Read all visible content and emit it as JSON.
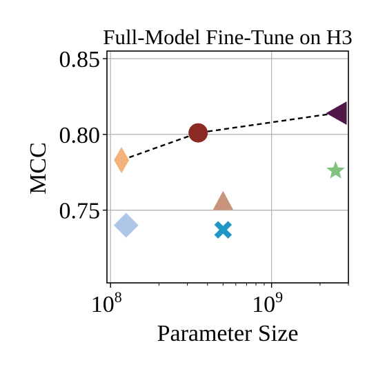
{
  "chart_data": {
    "type": "scatter",
    "title": "Full-Model Fine-Tune on H3",
    "xlabel": "Parameter Size",
    "ylabel": "MCC",
    "xscale": "log",
    "xlim": [
      95000000,
      3000000000
    ],
    "ylim": [
      0.702,
      0.855
    ],
    "grid": true,
    "yticks": [
      {
        "value": 0.75,
        "label": "0.75"
      },
      {
        "value": 0.8,
        "label": "0.80"
      },
      {
        "value": 0.85,
        "label": "0.85"
      }
    ],
    "xticks": [
      {
        "value": 100000000,
        "base": "10",
        "exp": "8"
      },
      {
        "value": 1000000000,
        "base": "10",
        "exp": "9"
      }
    ],
    "points": [
      {
        "x": 117000000,
        "y": 0.783,
        "marker": "diamond-thin",
        "color": "#f4b27a"
      },
      {
        "x": 125000000,
        "y": 0.74,
        "marker": "diamond",
        "color": "#aec7e8"
      },
      {
        "x": 350000000,
        "y": 0.801,
        "marker": "circle",
        "color": "#8b2a22"
      },
      {
        "x": 500000000,
        "y": 0.755,
        "marker": "triangle-up",
        "color": "#c8957c"
      },
      {
        "x": 500000000,
        "y": 0.737,
        "marker": "x",
        "color": "#1f97c4"
      },
      {
        "x": 2500000000,
        "y": 0.776,
        "marker": "star",
        "color": "#82c281"
      },
      {
        "x": 2500000000,
        "y": 0.814,
        "marker": "triangle-left",
        "color": "#4f1648"
      }
    ],
    "trend_line": {
      "style": "dashed",
      "color": "#000000",
      "x": [
        117000000,
        350000000,
        2500000000
      ],
      "y": [
        0.783,
        0.801,
        0.814
      ]
    }
  }
}
